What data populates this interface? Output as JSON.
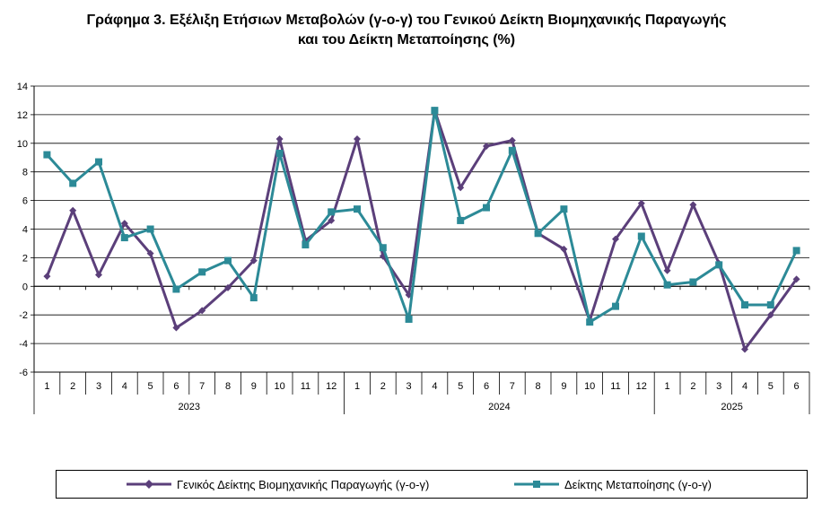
{
  "chart_data": {
    "type": "line",
    "title_line1": "Γράφημα 3. Εξέλιξη Ετήσιων Μεταβολών (γ-ο-γ) του Γενικού Δείκτη Βιομηχανικής Παραγωγής",
    "title_line2": "και του Δείκτη Μεταποίησης (%)",
    "ylim": [
      -6,
      14
    ],
    "yticks": [
      "14",
      "12",
      "10",
      "8",
      "6",
      "4",
      "2",
      "0",
      "-2",
      "-4",
      "-6"
    ],
    "ytick_values": [
      14,
      12,
      10,
      8,
      6,
      4,
      2,
      0,
      -2,
      -4,
      -6
    ],
    "grid": true,
    "legend_position": "bottom",
    "months": [
      "1",
      "2",
      "3",
      "4",
      "5",
      "6",
      "7",
      "8",
      "9",
      "10",
      "11",
      "12",
      "1",
      "2",
      "3",
      "4",
      "5",
      "6",
      "7",
      "8",
      "9",
      "10",
      "11",
      "12",
      "1",
      "2",
      "3",
      "4",
      "5",
      "6"
    ],
    "years": [
      {
        "label": "2023",
        "count": 12
      },
      {
        "label": "2024",
        "count": 12
      },
      {
        "label": "2025",
        "count": 6
      }
    ],
    "series": [
      {
        "name": "Γενικός Δείκτης Βιομηχανικής Παραγωγής (γ-ο-γ)",
        "color": "#5b3f7a",
        "marker": "diamond",
        "values": [
          0.7,
          5.3,
          0.8,
          4.4,
          2.3,
          -2.9,
          -1.7,
          -0.1,
          1.8,
          10.3,
          3.2,
          4.6,
          10.3,
          2.1,
          -0.6,
          12.3,
          6.9,
          9.8,
          10.2,
          3.7,
          2.6,
          -2.4,
          3.3,
          5.8,
          1.1,
          5.7,
          1.6,
          -4.4,
          -2.0,
          0.5
        ]
      },
      {
        "name": "Δείκτης Μεταποίησης (γ-ο-γ)",
        "color": "#2c8a97",
        "marker": "square",
        "values": [
          9.2,
          7.2,
          8.7,
          3.4,
          4.0,
          -0.2,
          1.0,
          1.8,
          -0.8,
          9.3,
          2.9,
          5.2,
          5.4,
          2.7,
          -2.3,
          12.3,
          4.6,
          5.5,
          9.5,
          3.7,
          5.4,
          -2.5,
          -1.4,
          3.5,
          0.1,
          0.3,
          1.5,
          -1.3,
          -1.3,
          2.5
        ]
      }
    ]
  }
}
